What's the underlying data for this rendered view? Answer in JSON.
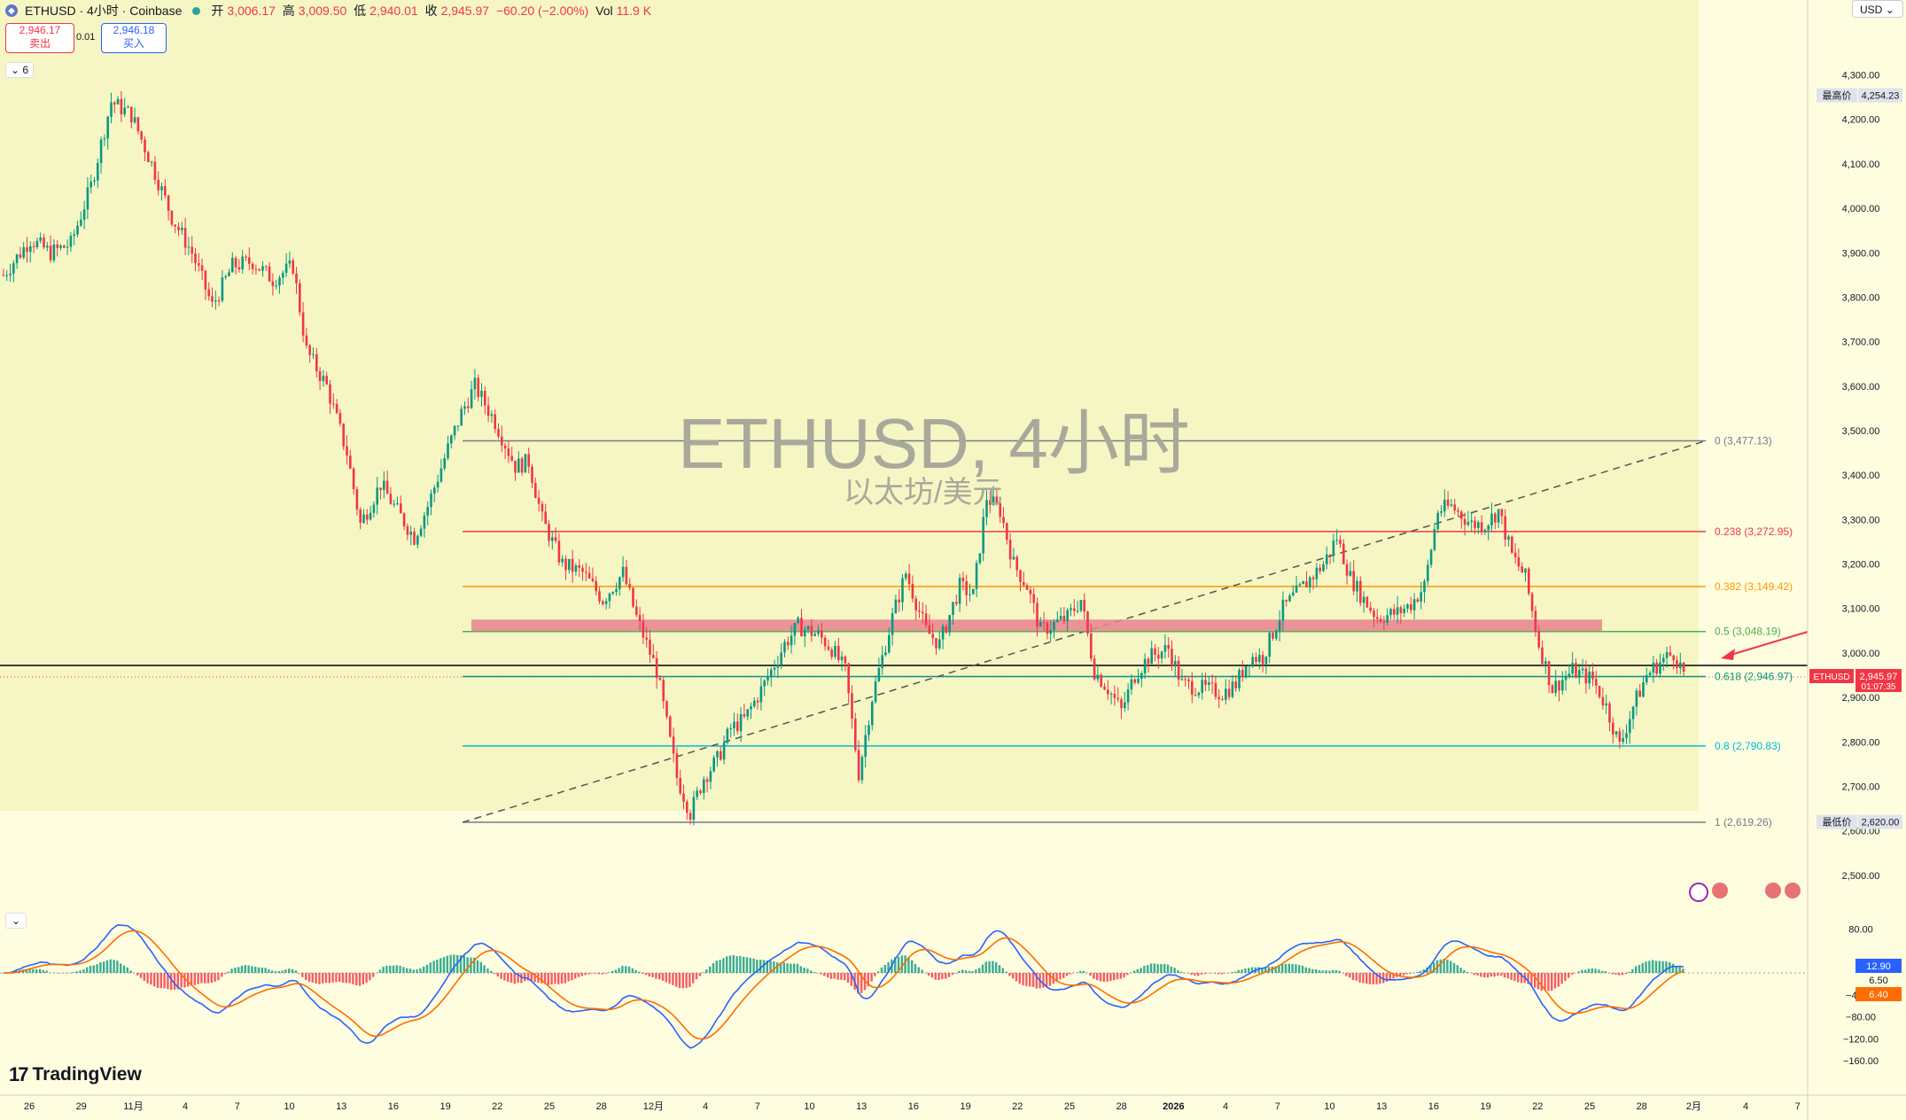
{
  "header": {
    "symbol": "ETHUSD · 4小时 · Coinbase",
    "open_label": "开",
    "open": "3,006.17",
    "high_label": "高",
    "high": "3,009.50",
    "low_label": "低",
    "low": "2,940.01",
    "close_label": "收",
    "close": "2,945.97",
    "change": "−60.20 (−2.00%)",
    "vol_label": "Vol",
    "vol": "11.9 K"
  },
  "trade": {
    "sell_price": "2,946.17",
    "sell_label": "卖出",
    "spread": "0.01",
    "buy_price": "2,946.18",
    "buy_label": "买入"
  },
  "indicators_collapse": "6",
  "currency": "USD",
  "watermark": {
    "title": "ETHUSD, 4小时",
    "subtitle": "以太坊/美元"
  },
  "brand": "TradingView",
  "price_axis": {
    "ticks": [
      "4,300.00",
      "4,200.00",
      "4,100.00",
      "4,000.00",
      "3,900.00",
      "3,800.00",
      "3,700.00",
      "3,600.00",
      "3,500.00",
      "3,400.00",
      "3,300.00",
      "3,200.00",
      "3,100.00",
      "3,000.00",
      "2,900.00",
      "2,800.00",
      "2,700.00",
      "2,600.00",
      "2,500.00"
    ],
    "tick_values": [
      4300,
      4200,
      4100,
      4000,
      3900,
      3800,
      3700,
      3600,
      3500,
      3400,
      3300,
      3200,
      3100,
      3000,
      2900,
      2800,
      2700,
      2600,
      2500
    ],
    "high_label": "最高价",
    "high_value": "4,254.23",
    "low_label": "最低价",
    "low_value": "2,620.00",
    "last_symbol": "ETHUSD",
    "last_price": "2,945.97",
    "countdown": "01:07:35"
  },
  "macd_axis": {
    "ticks": [
      "80.00",
      "−40.00",
      "−80.00",
      "−120.00",
      "−160.00"
    ],
    "tick_values": [
      80,
      -40,
      -80,
      -120,
      -160
    ],
    "macd_value": "12.90",
    "signal_value": "6.50",
    "hist_value": "6.40"
  },
  "fib_levels": [
    {
      "label": "0 (3,477.13)",
      "value": 3477.13,
      "color": "#787b86"
    },
    {
      "label": "0.238 (3,272.95)",
      "value": 3272.95,
      "color": "#f23645"
    },
    {
      "label": "0.382 (3,149.42)",
      "value": 3149.42,
      "color": "#ff9800"
    },
    {
      "label": "0.5 (3,048.19)",
      "value": 3048.19,
      "color": "#4caf50"
    },
    {
      "label": "0.618 (2,946.97)",
      "value": 2946.97,
      "color": "#089981"
    },
    {
      "label": "0.8 (2,790.83)",
      "value": 2790.83,
      "color": "#00bcd4"
    },
    {
      "label": "1 (2,619.26)",
      "value": 2619.26,
      "color": "#787b86"
    }
  ],
  "time_axis": [
    "26",
    "29",
    "11月",
    "4",
    "7",
    "10",
    "13",
    "16",
    "19",
    "22",
    "25",
    "28",
    "12月",
    "4",
    "7",
    "10",
    "13",
    "16",
    "19",
    "22",
    "25",
    "28",
    "2026",
    "4",
    "7",
    "10",
    "13",
    "16",
    "19",
    "22",
    "25",
    "28",
    "2月",
    "4",
    "7"
  ],
  "colors": {
    "up": "#089981",
    "down": "#f23645",
    "bg": "#fffde0",
    "zone": "#e8838f",
    "macd": "#2962ff",
    "signal": "#ff6d00"
  },
  "chart_data": {
    "type": "candlestick",
    "title": "ETHUSD, 4小时",
    "ylim": [
      2450,
      4350
    ],
    "price_path": [
      [
        0,
        3850
      ],
      [
        8,
        3930
      ],
      [
        14,
        3900
      ],
      [
        20,
        3920
      ],
      [
        26,
        4050
      ],
      [
        32,
        4240
      ],
      [
        38,
        4210
      ],
      [
        44,
        4100
      ],
      [
        50,
        3980
      ],
      [
        56,
        3900
      ],
      [
        62,
        3780
      ],
      [
        68,
        3870
      ],
      [
        74,
        3880
      ],
      [
        80,
        3840
      ],
      [
        86,
        3870
      ],
      [
        90,
        3680
      ],
      [
        96,
        3600
      ],
      [
        102,
        3450
      ],
      [
        106,
        3290
      ],
      [
        112,
        3380
      ],
      [
        116,
        3330
      ],
      [
        122,
        3260
      ],
      [
        126,
        3330
      ],
      [
        132,
        3460
      ],
      [
        136,
        3540
      ],
      [
        140,
        3600
      ],
      [
        146,
        3520
      ],
      [
        152,
        3420
      ],
      [
        156,
        3430
      ],
      [
        160,
        3300
      ],
      [
        166,
        3200
      ],
      [
        172,
        3180
      ],
      [
        178,
        3120
      ],
      [
        184,
        3180
      ],
      [
        188,
        3080
      ],
      [
        194,
        2960
      ],
      [
        200,
        2720
      ],
      [
        204,
        2640
      ],
      [
        208,
        2720
      ],
      [
        212,
        2760
      ],
      [
        216,
        2830
      ],
      [
        220,
        2850
      ],
      [
        226,
        2930
      ],
      [
        232,
        3020
      ],
      [
        236,
        3060
      ],
      [
        242,
        3040
      ],
      [
        246,
        3010
      ],
      [
        250,
        2960
      ],
      [
        254,
        2730
      ],
      [
        258,
        2900
      ],
      [
        264,
        3080
      ],
      [
        268,
        3180
      ],
      [
        274,
        3050
      ],
      [
        278,
        3020
      ],
      [
        284,
        3150
      ],
      [
        288,
        3130
      ],
      [
        292,
        3350
      ],
      [
        296,
        3320
      ],
      [
        300,
        3200
      ],
      [
        304,
        3150
      ],
      [
        308,
        3050
      ],
      [
        316,
        3080
      ],
      [
        320,
        3120
      ],
      [
        324,
        2960
      ],
      [
        328,
        2920
      ],
      [
        332,
        2870
      ],
      [
        336,
        2950
      ],
      [
        340,
        2990
      ],
      [
        346,
        3010
      ],
      [
        350,
        2930
      ],
      [
        356,
        2920
      ],
      [
        362,
        2910
      ],
      [
        366,
        2930
      ],
      [
        370,
        2990
      ],
      [
        374,
        2990
      ],
      [
        380,
        3100
      ],
      [
        386,
        3150
      ],
      [
        392,
        3200
      ],
      [
        396,
        3260
      ],
      [
        400,
        3170
      ],
      [
        404,
        3120
      ],
      [
        408,
        3080
      ],
      [
        414,
        3090
      ],
      [
        418,
        3110
      ],
      [
        422,
        3150
      ],
      [
        426,
        3320
      ],
      [
        430,
        3330
      ],
      [
        436,
        3290
      ],
      [
        440,
        3290
      ],
      [
        444,
        3320
      ],
      [
        448,
        3220
      ],
      [
        452,
        3170
      ],
      [
        456,
        3020
      ],
      [
        460,
        2920
      ],
      [
        466,
        2960
      ],
      [
        472,
        2940
      ],
      [
        476,
        2880
      ],
      [
        480,
        2790
      ],
      [
        484,
        2880
      ],
      [
        488,
        2950
      ],
      [
        492,
        2980
      ],
      [
        496,
        3000
      ],
      [
        500,
        2940
      ]
    ],
    "price_range": {
      "high": "4,254.23",
      "low": "2,620.00",
      "close": "2,945.97"
    }
  }
}
